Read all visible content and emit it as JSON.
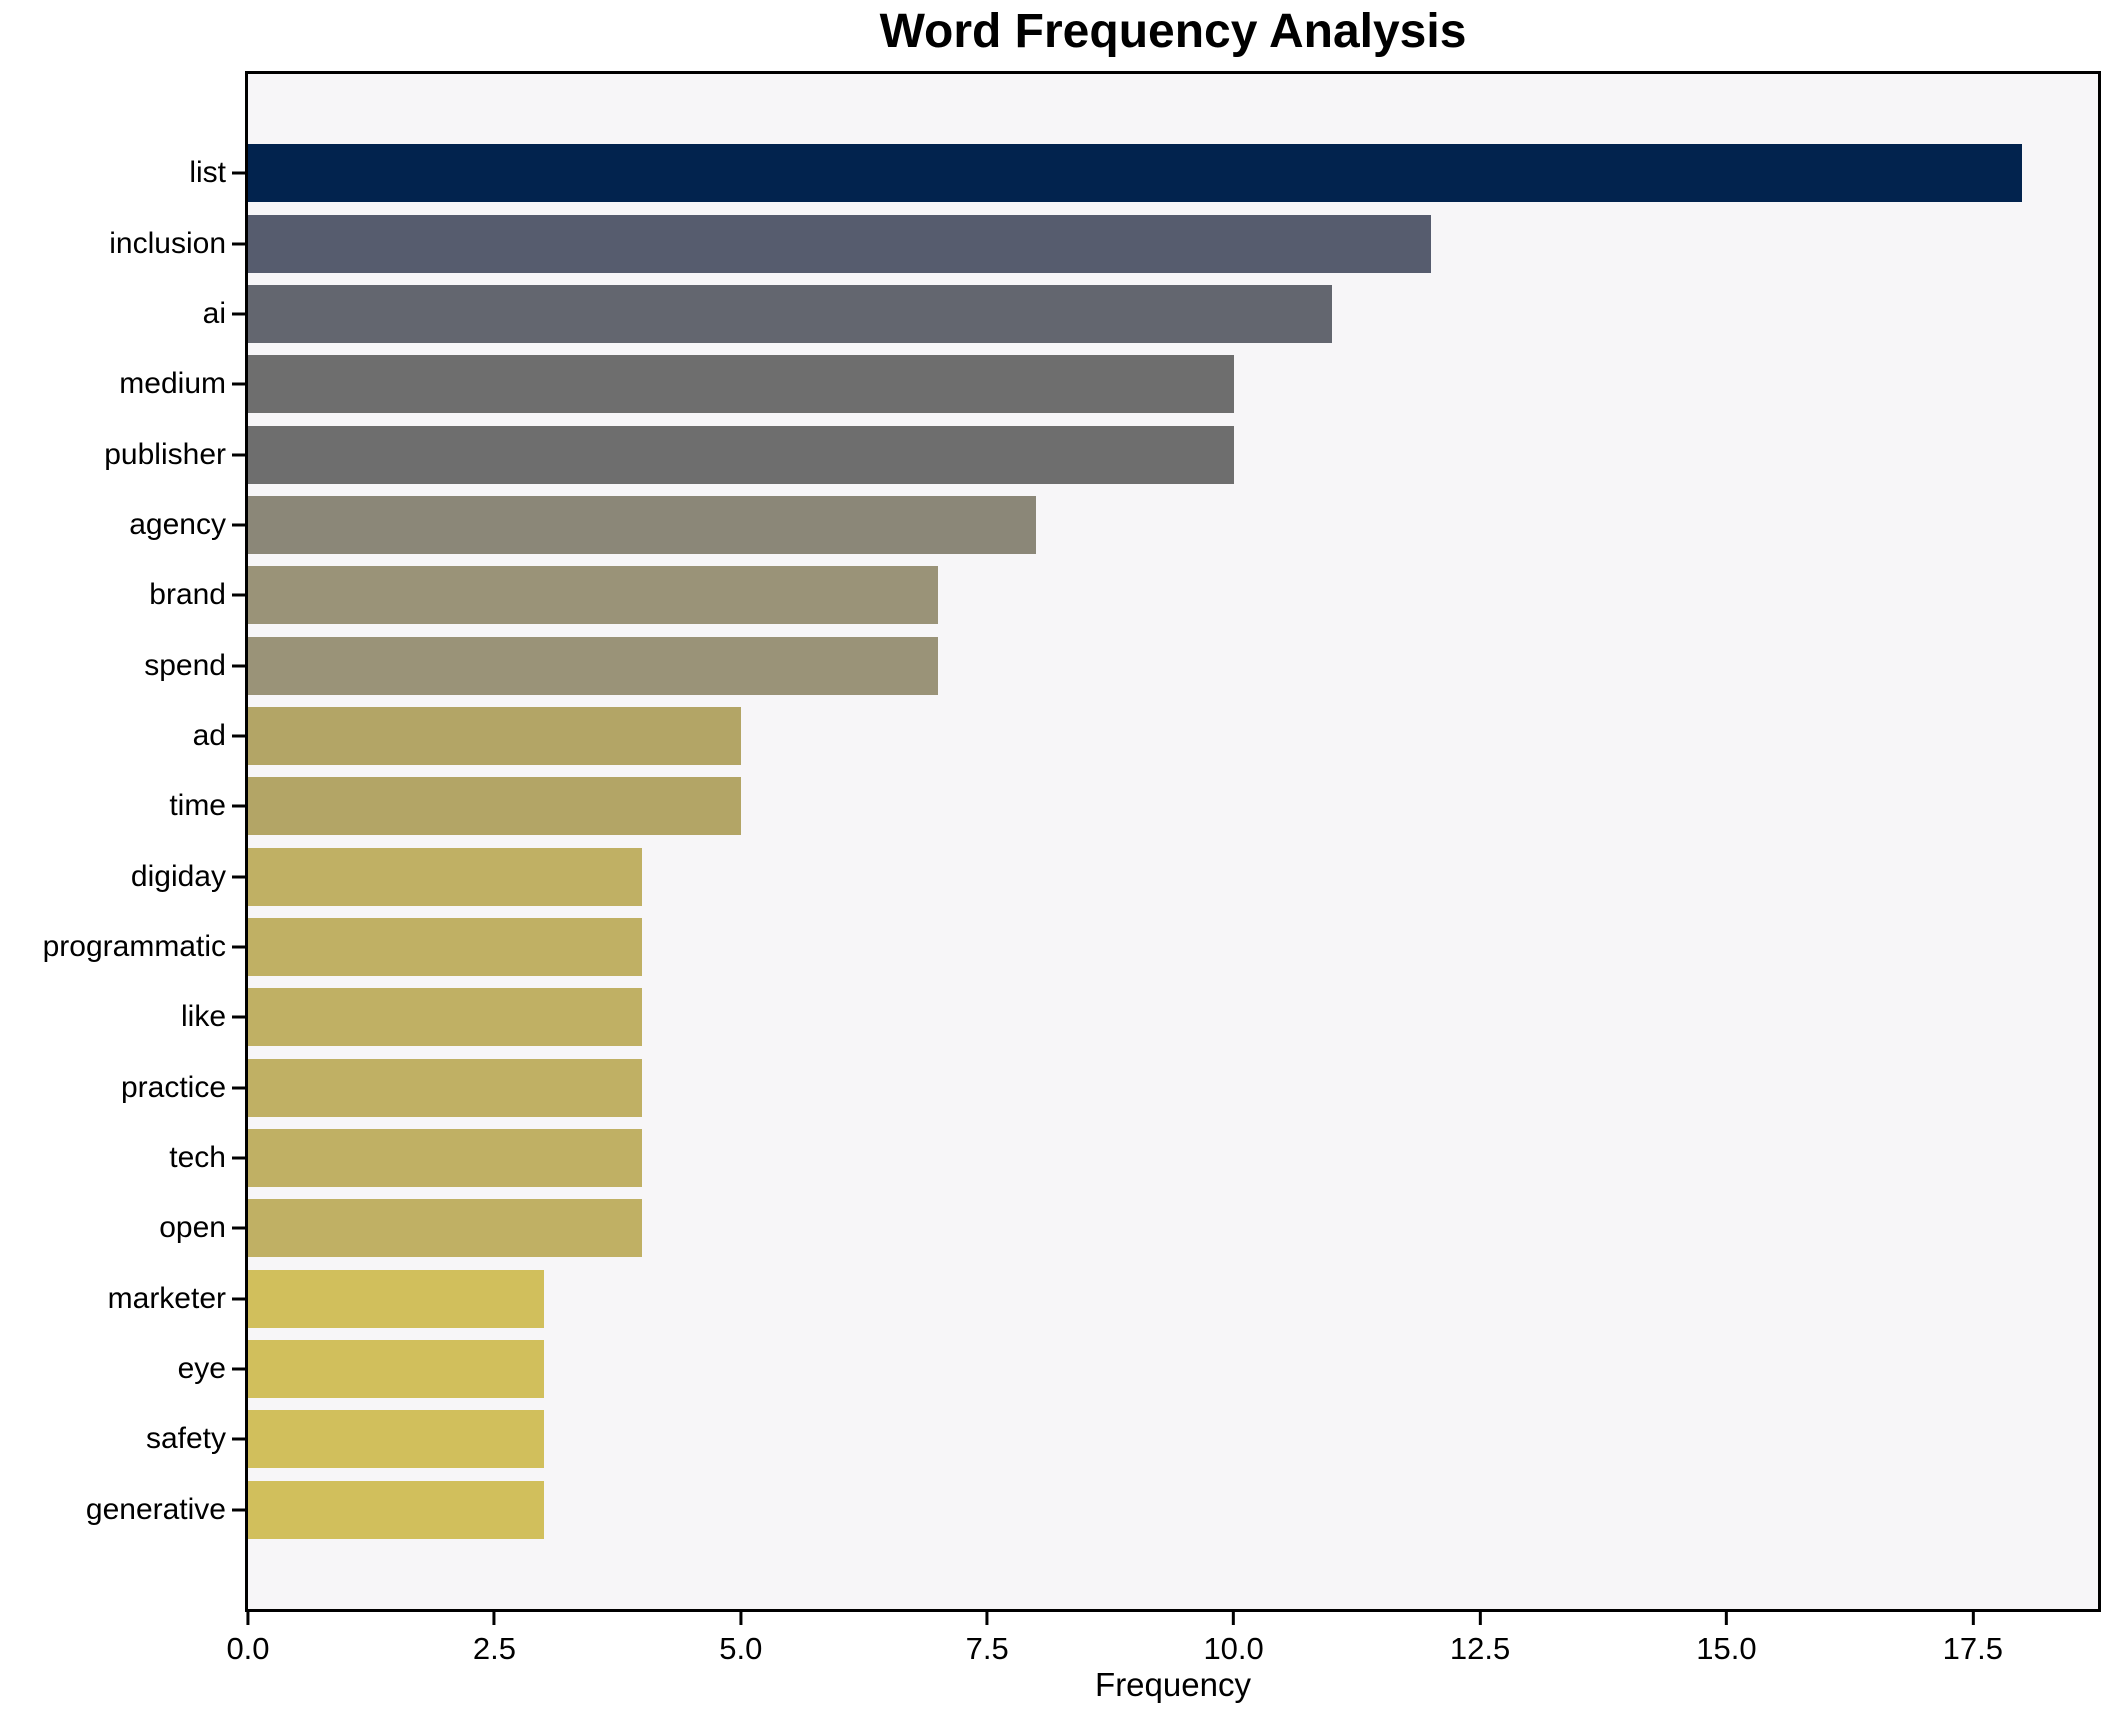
{
  "figure": {
    "background": "#ffffff",
    "plot_background": "#f7f6f8",
    "spine_color": "#000000",
    "text_color": "#000000"
  },
  "chart_data": {
    "type": "bar",
    "orientation": "horizontal",
    "title": "Word Frequency Analysis",
    "xlabel": "Frequency",
    "ylabel": "",
    "categories": [
      "list",
      "inclusion",
      "ai",
      "medium",
      "publisher",
      "agency",
      "brand",
      "spend",
      "ad",
      "time",
      "digiday",
      "programmatic",
      "like",
      "practice",
      "tech",
      "open",
      "marketer",
      "eye",
      "safety",
      "generative"
    ],
    "values": [
      18,
      12,
      11,
      10,
      10,
      8,
      7,
      7,
      5,
      5,
      4,
      4,
      4,
      4,
      4,
      4,
      3,
      3,
      3,
      3
    ],
    "bar_colors": [
      "#02234e",
      "#565c6e",
      "#63666f",
      "#6e6e6e",
      "#6e6e6e",
      "#8b8778",
      "#9a9378",
      "#9a9378",
      "#b3a566",
      "#b3a566",
      "#c0b064",
      "#c0b064",
      "#c0b064",
      "#c0b064",
      "#c0b064",
      "#c0b064",
      "#d1bf5c",
      "#d1bf5c",
      "#d1bf5c",
      "#d1bf5c"
    ],
    "xlim": [
      0,
      18.77
    ],
    "xticks": [
      0,
      2.5,
      5,
      7.5,
      10,
      12.5,
      15,
      17.5
    ],
    "xtick_labels": [
      "0.0",
      "2.5",
      "5.0",
      "7.5",
      "10.0",
      "12.5",
      "15.0",
      "17.5"
    ],
    "grid": false,
    "legend": null,
    "colormap": "cividis"
  }
}
